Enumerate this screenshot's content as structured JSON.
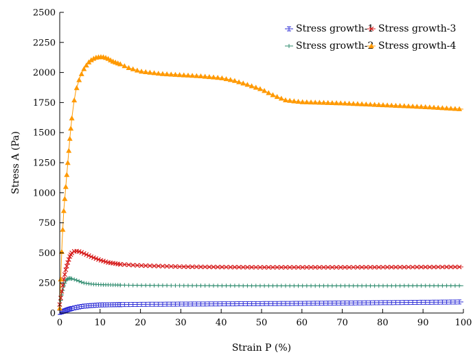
{
  "chart_data": {
    "type": "line",
    "title": "",
    "xlabel": "Strain P (%)",
    "ylabel": "Stress A (Pa)",
    "xlim": [
      0,
      100
    ],
    "ylim": [
      0,
      2500
    ],
    "x_ticks": [
      0,
      10,
      20,
      30,
      40,
      50,
      60,
      70,
      80,
      90,
      100
    ],
    "y_ticks": [
      0,
      250,
      500,
      750,
      1000,
      1250,
      1500,
      1750,
      2000,
      2250,
      2500
    ],
    "grid": false,
    "legend_position": "top-right",
    "series": [
      {
        "name": "Stress growth-1",
        "color": "#2b2bd6",
        "marker": "errbar",
        "x": [
          0,
          1,
          2,
          3,
          4,
          5,
          6,
          8,
          10,
          15,
          20,
          30,
          40,
          50,
          60,
          70,
          80,
          90,
          100
        ],
        "y": [
          5,
          15,
          28,
          38,
          45,
          52,
          57,
          63,
          67,
          70,
          72,
          74,
          76,
          78,
          80,
          83,
          86,
          89,
          92
        ]
      },
      {
        "name": "Stress growth-2",
        "color": "#2e8b6e",
        "marker": "plus",
        "x": [
          0,
          0.5,
          1,
          1.5,
          2,
          2.5,
          3,
          4,
          5,
          6,
          8,
          10,
          15,
          20,
          30,
          40,
          50,
          60,
          70,
          80,
          90,
          100
        ],
        "y": [
          60,
          150,
          225,
          270,
          285,
          288,
          285,
          275,
          262,
          250,
          240,
          236,
          232,
          230,
          228,
          227,
          226,
          226,
          226,
          226,
          227,
          227
        ]
      },
      {
        "name": "Stress growth-3",
        "color": "#d61a1a",
        "marker": "x",
        "x": [
          0,
          0.5,
          1,
          1.5,
          2,
          2.5,
          3,
          3.5,
          4,
          5,
          6,
          7,
          8,
          10,
          12,
          15,
          20,
          25,
          30,
          40,
          50,
          60,
          70,
          80,
          90,
          100
        ],
        "y": [
          70,
          180,
          280,
          360,
          420,
          470,
          500,
          512,
          515,
          510,
          495,
          480,
          465,
          440,
          420,
          405,
          395,
          390,
          385,
          382,
          380,
          380,
          380,
          381,
          382,
          383
        ]
      },
      {
        "name": "Stress growth-4",
        "color": "#ff9900",
        "marker": "triangle",
        "x": [
          0,
          0.3,
          0.6,
          1,
          1.5,
          2,
          2.5,
          3,
          3.5,
          4,
          5,
          6,
          7,
          8,
          9,
          10,
          11,
          12,
          13,
          15,
          17,
          20,
          25,
          30,
          35,
          40,
          43,
          46,
          50,
          53,
          56,
          60,
          65,
          70,
          80,
          90,
          100
        ],
        "y": [
          40,
          330,
          600,
          850,
          1050,
          1250,
          1450,
          1620,
          1750,
          1850,
          1960,
          2030,
          2080,
          2110,
          2125,
          2130,
          2128,
          2115,
          2095,
          2070,
          2040,
          2010,
          1990,
          1980,
          1970,
          1955,
          1935,
          1905,
          1860,
          1810,
          1770,
          1755,
          1750,
          1745,
          1730,
          1715,
          1695
        ]
      }
    ]
  }
}
